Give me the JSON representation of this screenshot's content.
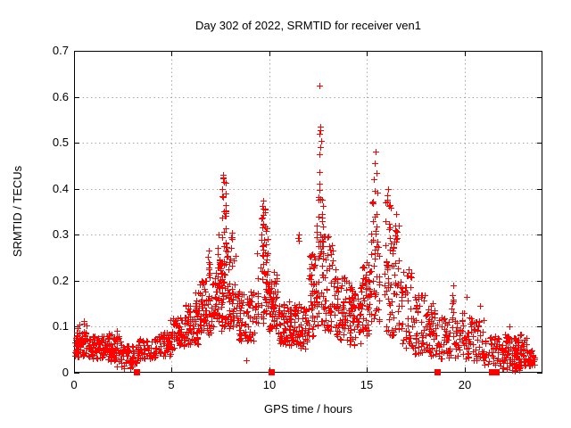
{
  "figure": {
    "background": "#ffffff",
    "border_color": "#000000",
    "grid_color": "#a8a8a8",
    "text_color": "#000000"
  },
  "chart_data": {
    "type": "scatter",
    "title": "Day 302 of 2022, SRMTID for receiver ven1",
    "xlabel": "GPS time / hours",
    "ylabel": "SRMTID / TECUs",
    "xlim": [
      0,
      24
    ],
    "ylim": [
      0,
      0.7
    ],
    "xticks": [
      0,
      5,
      10,
      15,
      20
    ],
    "yticks": [
      0,
      0.1,
      0.2,
      0.3,
      0.4,
      0.5,
      0.6,
      0.7
    ],
    "grid": true,
    "legend": false,
    "marker": "plus",
    "marker_color": "#ff0000",
    "series_name": "SRMTID",
    "zero_markers": {
      "shape": "filled-square",
      "color": "#ff0000",
      "x": [
        3.2,
        10.1,
        18.6,
        21.4,
        21.6
      ],
      "y": 0
    },
    "peak_points": [
      [
        12.55,
        0.625
      ],
      [
        12.6,
        0.535
      ],
      [
        12.63,
        0.527
      ],
      [
        12.58,
        0.52
      ],
      [
        12.66,
        0.505
      ],
      [
        12.61,
        0.49
      ],
      [
        12.57,
        0.475
      ],
      [
        15.45,
        0.48
      ],
      [
        15.42,
        0.455
      ],
      [
        15.5,
        0.435
      ],
      [
        15.36,
        0.42
      ],
      [
        7.62,
        0.43
      ],
      [
        7.68,
        0.415
      ],
      [
        7.58,
        0.4
      ],
      [
        7.76,
        0.39
      ],
      [
        16.1,
        0.4
      ],
      [
        16.05,
        0.385
      ],
      [
        16.18,
        0.365
      ],
      [
        16.5,
        0.345
      ],
      [
        16.45,
        0.31
      ],
      [
        9.7,
        0.375
      ],
      [
        9.76,
        0.355
      ],
      [
        9.62,
        0.335
      ],
      [
        11.5,
        0.3
      ],
      [
        7.4,
        0.3
      ],
      [
        8.1,
        0.305
      ],
      [
        6.9,
        0.265
      ],
      [
        9.35,
        0.26
      ],
      [
        17.15,
        0.225
      ],
      [
        17.22,
        0.21
      ],
      [
        19.42,
        0.19
      ],
      [
        20.1,
        0.165
      ],
      [
        20.8,
        0.145
      ],
      [
        22.3,
        0.1
      ],
      [
        4.95,
        0.115
      ],
      [
        0.5,
        0.112
      ],
      [
        2.2,
        0.092
      ],
      [
        8.8,
        0.027
      ]
    ],
    "density_bands_format": "[xStart, xEnd, yMin, yMax, count] — envelope of the dense plus-marker cloud",
    "density_bands": [
      [
        0.0,
        0.7,
        0.035,
        0.09,
        60
      ],
      [
        0.0,
        0.7,
        0.07,
        0.11,
        12
      ],
      [
        0.7,
        1.6,
        0.03,
        0.08,
        70
      ],
      [
        1.6,
        2.4,
        0.025,
        0.085,
        65
      ],
      [
        2.4,
        3.3,
        0.02,
        0.06,
        55
      ],
      [
        2.0,
        3.0,
        0.008,
        0.02,
        8
      ],
      [
        3.3,
        4.2,
        0.03,
        0.075,
        50
      ],
      [
        4.2,
        5.0,
        0.035,
        0.09,
        50
      ],
      [
        5.0,
        5.7,
        0.05,
        0.12,
        55
      ],
      [
        5.7,
        6.4,
        0.06,
        0.15,
        60
      ],
      [
        6.2,
        6.4,
        0.13,
        0.175,
        8
      ],
      [
        6.4,
        7.1,
        0.08,
        0.2,
        65
      ],
      [
        6.85,
        7.0,
        0.2,
        0.26,
        8
      ],
      [
        7.1,
        7.6,
        0.09,
        0.24,
        55
      ],
      [
        7.35,
        7.45,
        0.24,
        0.295,
        5
      ],
      [
        7.55,
        7.85,
        0.1,
        0.36,
        45
      ],
      [
        7.55,
        7.8,
        0.36,
        0.425,
        7
      ],
      [
        7.85,
        8.3,
        0.09,
        0.27,
        45
      ],
      [
        8.05,
        8.15,
        0.27,
        0.3,
        4
      ],
      [
        8.3,
        9.3,
        0.07,
        0.18,
        80
      ],
      [
        9.3,
        9.45,
        0.1,
        0.255,
        10
      ],
      [
        9.55,
        9.95,
        0.1,
        0.32,
        50
      ],
      [
        9.6,
        9.85,
        0.32,
        0.37,
        8
      ],
      [
        9.95,
        10.45,
        0.09,
        0.22,
        55
      ],
      [
        10.45,
        11.2,
        0.06,
        0.16,
        70
      ],
      [
        11.2,
        12.0,
        0.05,
        0.15,
        70
      ],
      [
        11.45,
        11.55,
        0.28,
        0.295,
        2
      ],
      [
        12.0,
        12.4,
        0.08,
        0.26,
        45
      ],
      [
        12.4,
        12.8,
        0.1,
        0.37,
        50
      ],
      [
        12.45,
        12.75,
        0.37,
        0.465,
        8
      ],
      [
        12.8,
        13.4,
        0.09,
        0.3,
        50
      ],
      [
        13.4,
        14.1,
        0.07,
        0.22,
        60
      ],
      [
        14.1,
        14.7,
        0.06,
        0.19,
        60
      ],
      [
        14.7,
        15.2,
        0.08,
        0.24,
        50
      ],
      [
        15.2,
        15.65,
        0.1,
        0.4,
        45
      ],
      [
        15.9,
        16.3,
        0.08,
        0.38,
        45
      ],
      [
        16.3,
        16.7,
        0.07,
        0.33,
        35
      ],
      [
        16.7,
        17.4,
        0.05,
        0.22,
        45
      ],
      [
        17.4,
        18.1,
        0.04,
        0.17,
        50
      ],
      [
        18.1,
        18.6,
        0.035,
        0.16,
        40
      ],
      [
        18.6,
        19.3,
        0.03,
        0.12,
        45
      ],
      [
        19.35,
        19.5,
        0.05,
        0.185,
        12
      ],
      [
        19.5,
        20.3,
        0.03,
        0.13,
        50
      ],
      [
        20.3,
        21.0,
        0.025,
        0.12,
        40
      ],
      [
        21.0,
        21.9,
        0.015,
        0.08,
        45
      ],
      [
        21.9,
        23.2,
        0.01,
        0.085,
        110
      ],
      [
        23.2,
        23.6,
        0.015,
        0.05,
        25
      ],
      [
        21.9,
        23.0,
        0.002,
        0.012,
        10
      ]
    ]
  }
}
